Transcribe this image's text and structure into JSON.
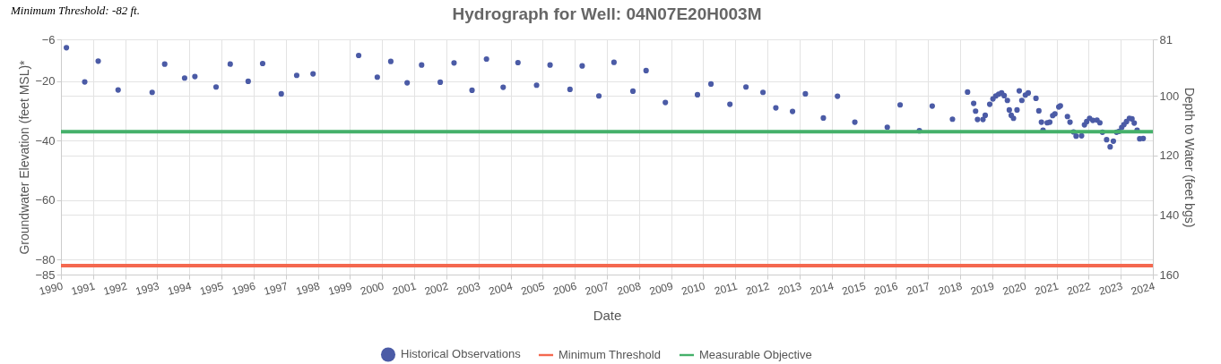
{
  "chart_data": {
    "type": "scatter",
    "title": "Hydrograph for Well: 04N07E20H003M",
    "xlabel": "Date",
    "ylabel": "Groundwater Elevation (feet MSL)*",
    "y2label": "Depth to Water (feet bgs)",
    "annotations": [
      "Minimum Threshold: -82 ft."
    ],
    "xlim": [
      1990,
      2024
    ],
    "xticks": [
      1990,
      1991,
      1992,
      1993,
      1994,
      1995,
      1996,
      1997,
      1998,
      1999,
      2000,
      2001,
      2002,
      2003,
      2004,
      2005,
      2006,
      2007,
      2008,
      2009,
      2010,
      2011,
      2012,
      2013,
      2014,
      2015,
      2016,
      2017,
      2018,
      2019,
      2020,
      2021,
      2022,
      2023,
      2024
    ],
    "ylim": [
      -85,
      -6
    ],
    "yticks": [
      -6,
      -20,
      -40,
      -60,
      -80,
      -85
    ],
    "y2lim": [
      160,
      81
    ],
    "y2ticks": [
      81,
      100,
      120,
      140,
      160
    ],
    "grid": true,
    "legend": "bottom",
    "marker": "circle",
    "series": [
      {
        "name": "Historical Observations",
        "color": "#4b5ba6",
        "x": [
          1990.17,
          1990.74,
          1991.16,
          1991.78,
          1992.84,
          1993.23,
          1993.85,
          1994.17,
          1994.83,
          1995.27,
          1995.83,
          1996.28,
          1996.86,
          1997.34,
          1997.85,
          1999.27,
          1999.85,
          2000.27,
          2000.78,
          2001.23,
          2001.81,
          2002.24,
          2002.8,
          2003.25,
          2003.77,
          2004.23,
          2004.81,
          2005.23,
          2005.85,
          2006.23,
          2006.75,
          2007.22,
          2007.81,
          2008.22,
          2008.82,
          2009.82,
          2010.24,
          2010.83,
          2011.33,
          2011.86,
          2012.26,
          2012.78,
          2013.18,
          2013.74,
          2014.18,
          2014.72,
          2015.73,
          2016.13,
          2016.73,
          2017.13,
          2017.76,
          2018.23,
          2018.42,
          2018.48,
          2018.54,
          2018.71,
          2018.78,
          2018.92,
          2019.02,
          2019.11,
          2019.2,
          2019.29,
          2019.37,
          2019.47,
          2019.53,
          2019.59,
          2019.66,
          2019.77,
          2019.84,
          2019.92,
          2020.03,
          2020.12,
          2020.36,
          2020.45,
          2020.53,
          2020.58,
          2020.71,
          2020.79,
          2020.88,
          2020.95,
          2021.07,
          2021.12,
          2021.34,
          2021.42,
          2021.53,
          2021.61,
          2021.78,
          2021.87,
          2021.94,
          2022.03,
          2022.13,
          2022.26,
          2022.35,
          2022.43,
          2022.56,
          2022.67,
          2022.77,
          2022.87,
          2022.95,
          2023.03,
          2023.1,
          2023.18,
          2023.27,
          2023.35,
          2023.42,
          2023.51,
          2023.59,
          2023.7
        ],
        "values": [
          -8.8,
          -20.3,
          -13.3,
          -23.0,
          -23.8,
          -14.3,
          -19.0,
          -18.5,
          -22.0,
          -14.3,
          -20.1,
          -14.1,
          -24.3,
          -18.1,
          -17.6,
          -11.4,
          -18.7,
          -13.4,
          -20.6,
          -14.6,
          -20.4,
          -13.9,
          -23.1,
          -12.6,
          -22.1,
          -13.8,
          -21.4,
          -14.6,
          -22.8,
          -14.9,
          -25.0,
          -13.7,
          -23.4,
          -16.5,
          -27.2,
          -24.6,
          -21.0,
          -27.8,
          -22.0,
          -23.8,
          -29.0,
          -30.2,
          -24.3,
          -32.4,
          -25.1,
          -33.8,
          -35.5,
          -28.0,
          -36.7,
          -28.4,
          -32.8,
          -23.7,
          -27.5,
          -30.1,
          -32.9,
          -32.9,
          -31.5,
          -27.8,
          -26.0,
          -25.0,
          -24.4,
          -24.0,
          -24.9,
          -26.5,
          -29.7,
          -31.5,
          -32.5,
          -29.7,
          -23.3,
          -26.5,
          -24.7,
          -24.0,
          -25.8,
          -30.0,
          -33.8,
          -36.5,
          -34.0,
          -33.8,
          -31.6,
          -31.0,
          -28.7,
          -28.3,
          -31.9,
          -33.8,
          -37.1,
          -38.5,
          -38.4,
          -34.7,
          -33.6,
          -32.5,
          -33.2,
          -33.1,
          -34.0,
          -37.2,
          -39.7,
          -42.1,
          -40.2,
          -37.2,
          -36.9,
          -35.6,
          -34.6,
          -33.6,
          -32.5,
          -32.7,
          -34.1,
          -36.5,
          -39.4,
          -39.3
        ]
      }
    ],
    "ref_lines": [
      {
        "axis": "y",
        "value": -82,
        "label": "Minimum Threshold",
        "color": "#f4684f"
      },
      {
        "axis": "y",
        "value": -37,
        "label": "Measurable Objective",
        "color": "#45b06a"
      }
    ]
  }
}
